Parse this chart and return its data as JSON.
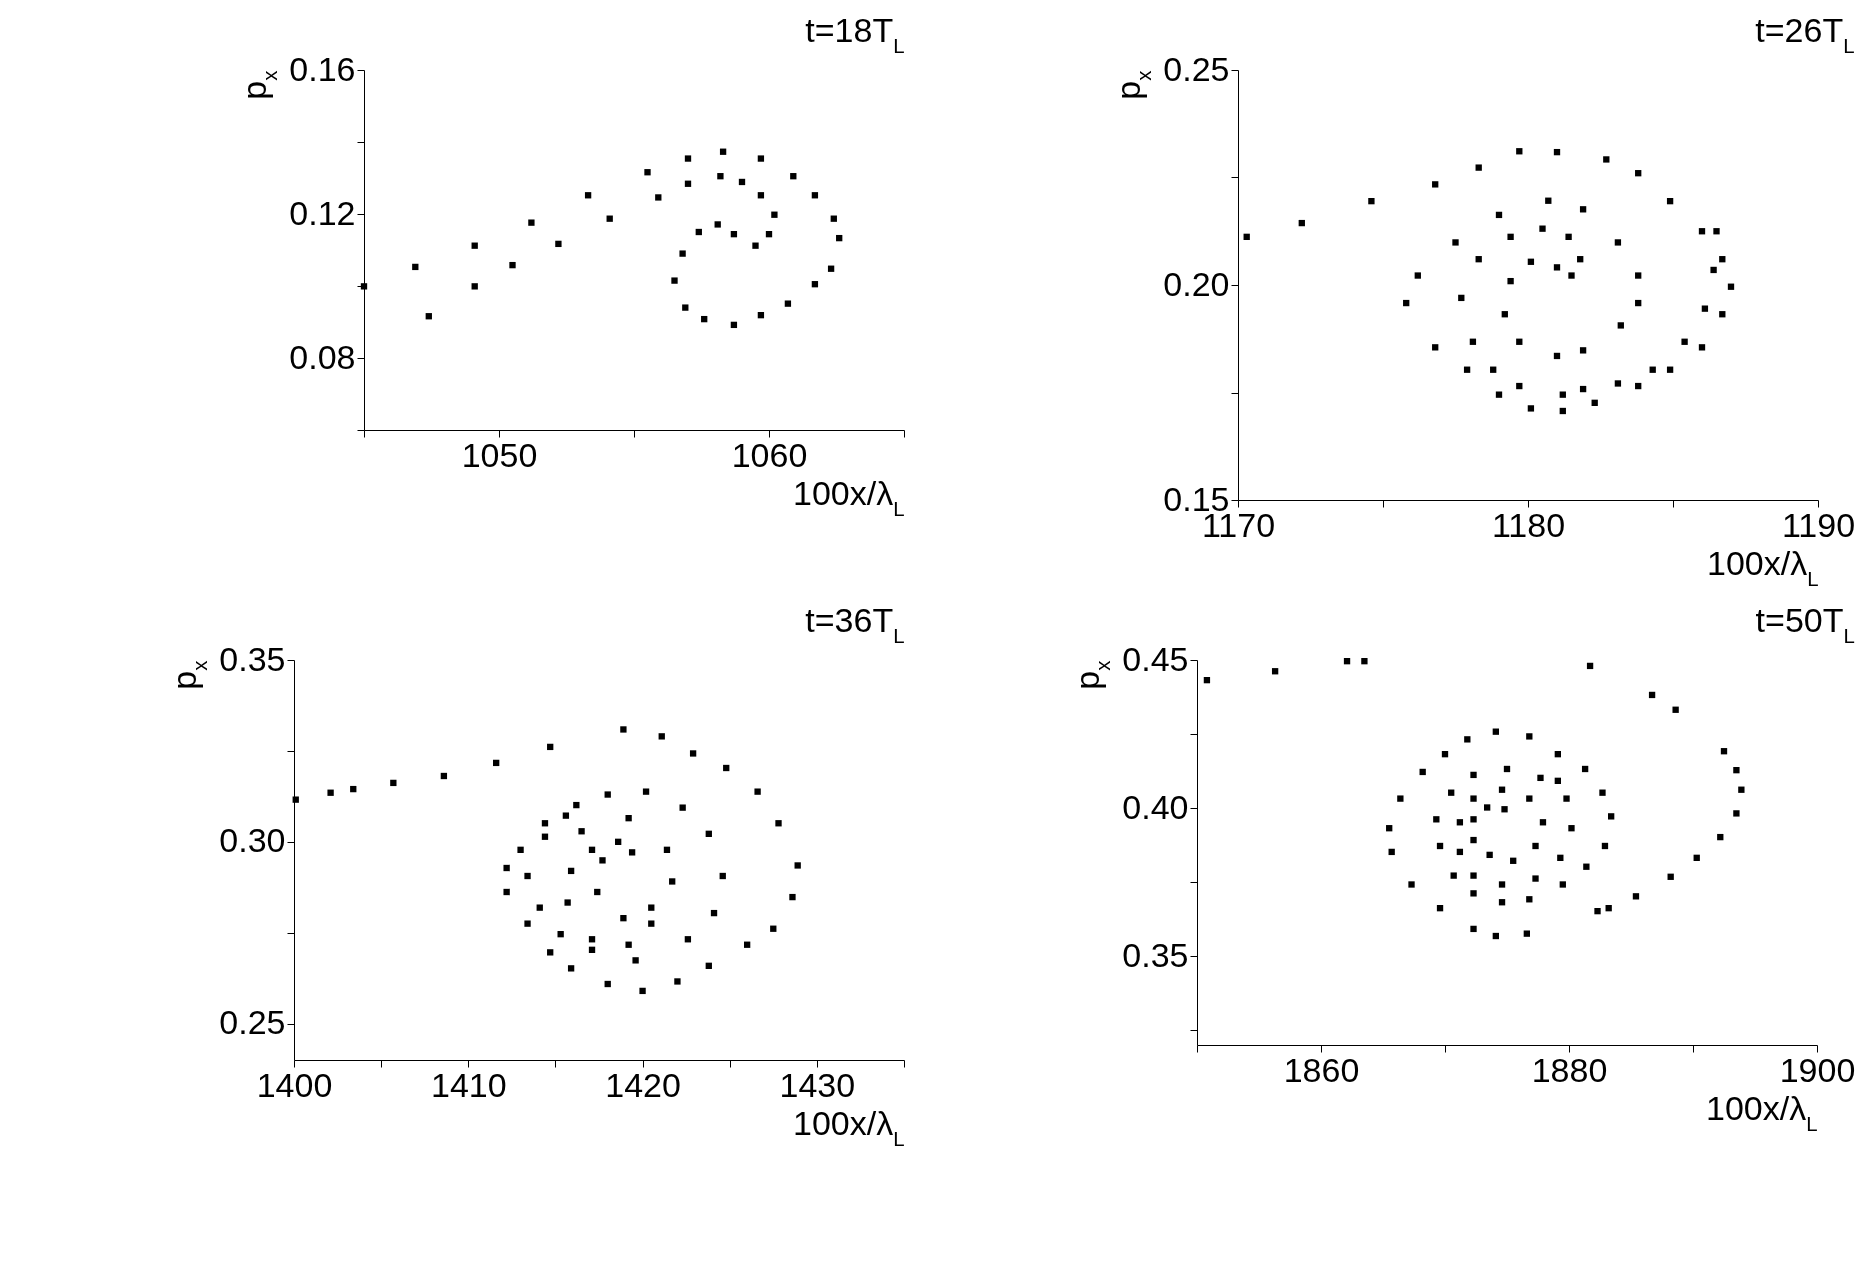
{
  "chart_data": [
    {
      "type": "scatter",
      "title": "t=18T$_{L}$",
      "xlabel": "100x/λ$_{L}$",
      "ylabel": "p$_{x}$",
      "marker": "square",
      "xlim": [
        1045,
        1065
      ],
      "xticks": [
        {
          "value": 1045,
          "label": null
        },
        1050,
        {
          "value": 1055,
          "label": null
        },
        1060,
        {
          "value": 1065,
          "label": null
        }
      ],
      "ylim": [
        0.06,
        0.16
      ],
      "yticks": [
        {
          "value": 0.06,
          "label": null
        },
        0.08,
        {
          "value": 0.1,
          "label": null
        },
        0.12,
        {
          "value": 0.14,
          "label": null
        },
        0.16
      ],
      "series": [
        {
          "color": "#000000",
          "x": [
            1045.0,
            1046.9,
            1049.1,
            1051.2,
            1053.3,
            1055.5,
            1057.0,
            1058.3,
            1059.7,
            1060.9,
            1061.7,
            1062.4,
            1062.6,
            1062.3,
            1061.7,
            1060.7,
            1059.7,
            1058.7,
            1057.6,
            1056.9,
            1056.5,
            1056.8,
            1057.4,
            1058.1,
            1058.7,
            1059.5,
            1060.0,
            1060.2,
            1059.7,
            1059.0,
            1058.2,
            1057.0,
            1055.9,
            1054.1,
            1052.2,
            1050.5,
            1049.1,
            1047.4
          ],
          "values": [
            0.0999,
            0.1053,
            0.1112,
            0.1176,
            0.1252,
            0.1316,
            0.1354,
            0.1373,
            0.1354,
            0.1305,
            0.1252,
            0.1187,
            0.1133,
            0.1048,
            0.1005,
            0.0951,
            0.0919,
            0.0892,
            0.0908,
            0.094,
            0.1015,
            0.109,
            0.115,
            0.1171,
            0.1144,
            0.1112,
            0.1144,
            0.1198,
            0.1252,
            0.1289,
            0.1305,
            0.1284,
            0.1246,
            0.1187,
            0.1117,
            0.1058,
            0.0999,
            0.0916
          ]
        }
      ]
    },
    {
      "type": "scatter",
      "title": "t=26T$_{L}$",
      "xlabel": "100x/λ$_{L}$",
      "ylabel": "p$_{x}$",
      "marker": "square",
      "xlim": [
        1170,
        1190
      ],
      "xticks": [
        1170,
        {
          "value": 1175,
          "label": null
        },
        1180,
        {
          "value": 1185,
          "label": null
        },
        1190
      ],
      "ylim": [
        0.15,
        0.25
      ],
      "yticks": [
        0.15,
        {
          "value": 0.175,
          "label": null
        },
        {
          "value": 0.2,
          "label": "0.20"
        },
        {
          "value": 0.225,
          "label": null
        },
        0.25
      ],
      "series": [
        {
          "color": "#000000",
          "x": [
            1170.3,
            1172.2,
            1174.6,
            1176.8,
            1178.3,
            1179.7,
            1181.0,
            1182.7,
            1183.8,
            1184.9,
            1186.0,
            1186.7,
            1187.0,
            1186.7,
            1186.0,
            1184.9,
            1183.8,
            1182.3,
            1181.2,
            1180.1,
            1186.5,
            1186.4,
            1186.1,
            1185.4,
            1184.3,
            1183.1,
            1181.9,
            1181.2,
            1179.7,
            1179.0,
            1177.9,
            1176.8,
            1175.8,
            1176.2,
            1177.5,
            1179.0,
            1180.7,
            1181.9,
            1183.1,
            1183.8,
            1183.8,
            1183.2,
            1181.9,
            1181.0,
            1179.7,
            1179.2,
            1179.4,
            1180.1,
            1181.0,
            1181.5,
            1181.8,
            1181.4,
            1180.5,
            1179.4,
            1178.3,
            1177.7,
            1178.1,
            1178.8
          ],
          "values": [
            0.2112,
            0.2144,
            0.2195,
            0.2234,
            0.2273,
            0.2311,
            0.2309,
            0.2292,
            0.226,
            0.2195,
            0.2125,
            0.206,
            0.1996,
            0.1932,
            0.1855,
            0.1803,
            0.1765,
            0.1726,
            0.1707,
            0.1713,
            0.2125,
            0.2035,
            0.1945,
            0.1868,
            0.1803,
            0.1771,
            0.1758,
            0.1745,
            0.1765,
            0.1745,
            0.1803,
            0.1855,
            0.1958,
            0.2022,
            0.2099,
            0.2163,
            0.2196,
            0.2176,
            0.2099,
            0.2022,
            0.1958,
            0.1906,
            0.1848,
            0.1835,
            0.1868,
            0.1932,
            0.2009,
            0.2054,
            0.2041,
            0.2022,
            0.206,
            0.2112,
            0.2131,
            0.2112,
            0.206,
            0.197,
            0.1868,
            0.1803
          ]
        }
      ]
    },
    {
      "type": "scatter",
      "title": "t=36T$_{L}$",
      "xlabel": "100x/λ$_{L}$",
      "ylabel": "p$_{x}$",
      "marker": "square",
      "xlim": [
        1400,
        1435
      ],
      "xticks": [
        1400,
        {
          "value": 1405,
          "label": null
        },
        1410,
        {
          "value": 1415,
          "label": null
        },
        1420,
        {
          "value": 1425,
          "label": null
        },
        1430,
        {
          "value": 1435,
          "label": null
        }
      ],
      "ylim": [
        0.24,
        0.35
      ],
      "yticks": [
        0.25,
        {
          "value": 0.275,
          "label": null
        },
        {
          "value": 0.3,
          "label": "0.30"
        },
        {
          "value": 0.325,
          "label": null
        },
        0.35
      ],
      "series": [
        {
          "color": "#000000",
          "x": [
            1400.1,
            1402.1,
            1403.4,
            1405.7,
            1408.6,
            1411.6,
            1414.7,
            1418.9,
            1421.1,
            1422.9,
            1424.8,
            1426.6,
            1427.8,
            1428.9,
            1428.6,
            1427.5,
            1426.0,
            1423.8,
            1422.0,
            1420.0,
            1418.0,
            1415.9,
            1414.7,
            1413.4,
            1412.2,
            1412.2,
            1413.0,
            1414.4,
            1416.2,
            1418.0,
            1420.2,
            1422.3,
            1423.8,
            1424.6,
            1424.1,
            1422.6,
            1419.6,
            1417.1,
            1415.3,
            1414.1,
            1413.4,
            1414.4,
            1415.6,
            1416.5,
            1419.2,
            1421.4,
            1421.7,
            1420.5,
            1419.2,
            1417.1,
            1415.7,
            1415.9,
            1417.1,
            1418.6,
            1419.4,
            1417.7,
            1417.4,
            1418.9,
            1420.5
          ],
          "values": [
            0.3116,
            0.3135,
            0.3145,
            0.3162,
            0.3181,
            0.3217,
            0.3261,
            0.3309,
            0.329,
            0.3243,
            0.3203,
            0.3138,
            0.3051,
            0.2935,
            0.2848,
            0.2761,
            0.2717,
            0.2659,
            0.2616,
            0.259,
            0.2609,
            0.2652,
            0.2696,
            0.2775,
            0.2862,
            0.2928,
            0.2978,
            0.3051,
            0.3101,
            0.313,
            0.3138,
            0.3094,
            0.3022,
            0.2906,
            0.2804,
            0.2732,
            0.2674,
            0.2703,
            0.2746,
            0.2819,
            0.2906,
            0.3014,
            0.3072,
            0.3029,
            0.3065,
            0.2978,
            0.2891,
            0.2775,
            0.2717,
            0.2732,
            0.2833,
            0.292,
            0.2978,
            0.3,
            0.2971,
            0.2949,
            0.2862,
            0.279,
            0.2819
          ]
        }
      ]
    },
    {
      "type": "scatter",
      "title": "t=50T$_{L}$",
      "xlabel": "100x/λ$_{L}$",
      "ylabel": "p$_{x}$",
      "marker": "square",
      "xlim": [
        1850,
        1900
      ],
      "xticks": [
        {
          "value": 1850,
          "label": null
        },
        1860,
        {
          "value": 1870,
          "label": null
        },
        1880,
        {
          "value": 1890,
          "label": null
        },
        1900
      ],
      "ylim": [
        0.32,
        0.45
      ],
      "yticks": [
        {
          "value": 0.325,
          "label": null
        },
        0.35,
        {
          "value": 0.375,
          "label": null
        },
        {
          "value": 0.4,
          "label": "0.40"
        },
        {
          "value": 0.425,
          "label": null
        },
        0.45
      ],
      "series": [
        {
          "color": "#000000",
          "x": [
            1850.8,
            1856.3,
            1862.1,
            1863.5,
            1881.7,
            1886.7,
            1888.6,
            1892.5,
            1893.5,
            1893.9,
            1893.5,
            1892.2,
            1890.3,
            1888.2,
            1885.4,
            1883.2,
            1882.3,
            1876.6,
            1874.1,
            1872.3,
            1869.6,
            1867.3,
            1865.7,
            1865.5,
            1866.4,
            1868.2,
            1870.0,
            1871.8,
            1874.1,
            1876.8,
            1879.1,
            1881.3,
            1882.7,
            1883.4,
            1882.9,
            1881.4,
            1879.5,
            1876.8,
            1874.6,
            1872.3,
            1870.7,
            1869.6,
            1869.3,
            1870.5,
            1872.3,
            1875.0,
            1877.7,
            1879.1,
            1879.8,
            1880.2,
            1879.3,
            1877.3,
            1874.6,
            1872.3,
            1871.2,
            1871.2,
            1872.3,
            1874.6,
            1876.8,
            1877.9,
            1877.3,
            1875.5,
            1873.6,
            1872.3,
            1872.3,
            1873.4,
            1874.8
          ],
          "values": [
            0.4432,
            0.4462,
            0.4496,
            0.4496,
            0.448,
            0.4382,
            0.4332,
            0.4192,
            0.4128,
            0.4062,
            0.3982,
            0.3902,
            0.3832,
            0.3768,
            0.3702,
            0.3662,
            0.3652,
            0.3576,
            0.3568,
            0.3592,
            0.3662,
            0.3742,
            0.3852,
            0.3932,
            0.4032,
            0.4122,
            0.4182,
            0.4232,
            0.4258,
            0.4242,
            0.4182,
            0.4132,
            0.4052,
            0.3972,
            0.3872,
            0.3802,
            0.3742,
            0.3692,
            0.3682,
            0.3712,
            0.3772,
            0.3872,
            0.3962,
            0.4052,
            0.4112,
            0.4132,
            0.4102,
            0.4092,
            0.4032,
            0.3932,
            0.3832,
            0.3762,
            0.3742,
            0.3772,
            0.3852,
            0.3952,
            0.4032,
            0.4062,
            0.4032,
            0.3952,
            0.3872,
            0.3822,
            0.3842,
            0.3892,
            0.3962,
            0.4002,
            0.3996
          ]
        }
      ]
    }
  ]
}
